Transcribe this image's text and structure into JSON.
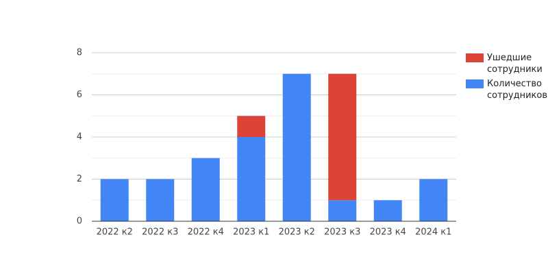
{
  "chart_data": {
    "type": "stacked_bar",
    "categories": [
      "2022 к2",
      "2022 к3",
      "2022 к4",
      "2023 к1",
      "2023 к2",
      "2023 к3",
      "2023 к4",
      "2024 к1"
    ],
    "series": [
      {
        "name": "Количество сотрудников",
        "color": "#4285f4",
        "values": [
          2,
          2,
          3,
          4,
          7,
          1,
          1,
          2
        ]
      },
      {
        "name": "Ушедшие сотрудники",
        "color": "#db4437",
        "values": [
          0,
          0,
          0,
          1,
          0,
          6,
          0,
          0
        ]
      }
    ],
    "ylim": [
      0,
      8
    ],
    "yticks": [
      0,
      2,
      4,
      6,
      8
    ],
    "grid": true,
    "minor_grid": true,
    "legend": "right"
  }
}
